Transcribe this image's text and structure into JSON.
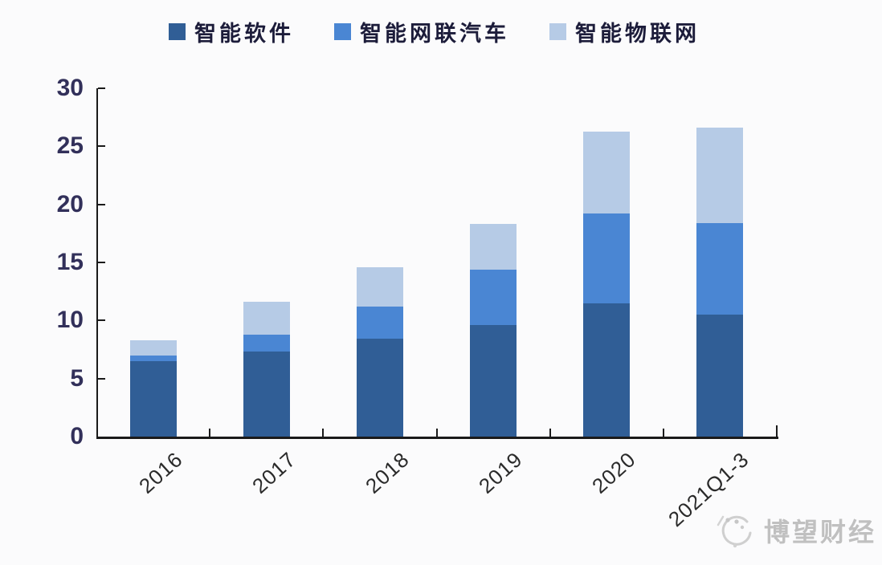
{
  "chart_data": {
    "type": "bar",
    "stacked": true,
    "title": "",
    "xlabel": "",
    "ylabel": "",
    "categories": [
      "2016",
      "2017",
      "2018",
      "2019",
      "2020",
      "2021Q1-3"
    ],
    "series": [
      {
        "name": "智能软件",
        "color": "#305e96",
        "values": [
          6.5,
          7.3,
          8.4,
          9.6,
          11.5,
          10.5
        ]
      },
      {
        "name": "智能网联汽车",
        "color": "#4a86d3",
        "values": [
          0.5,
          1.5,
          2.8,
          4.8,
          7.7,
          7.9
        ]
      },
      {
        "name": "智能物联网",
        "color": "#b6cbe6",
        "values": [
          1.3,
          2.8,
          3.4,
          3.9,
          7.1,
          8.2
        ]
      }
    ],
    "stack_totals": [
      8.3,
      11.6,
      14.6,
      18.3,
      26.3,
      26.6
    ],
    "ylim": [
      0,
      30
    ],
    "yticks": [
      0,
      5,
      10,
      15,
      20,
      25,
      30
    ],
    "grid": false,
    "legend_position": "top",
    "colors": {
      "axis": "#1a1a1a",
      "ytick_label": "#32305a",
      "xtick_label": "#2a2a2a",
      "legend_text": "#1c1c3a",
      "background": "#fbfbfc"
    }
  },
  "watermark": {
    "text": "博望财经",
    "icon": "watermark-logo-icon",
    "color": "#c0c0c0"
  }
}
